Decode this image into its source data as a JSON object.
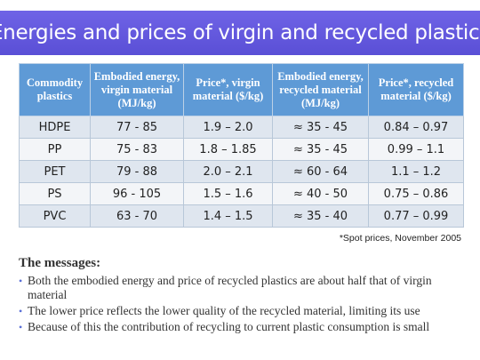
{
  "title": "Energies and prices of virgin and recycled plastics",
  "table": {
    "headers": [
      "Commodity plastics",
      "Embodied energy, virgin material (MJ/kg)",
      "Price*, virgin material ($/kg)",
      "Embodied energy, recycled material (MJ/kg)",
      "Price*, recycled material ($/kg)"
    ],
    "rows": [
      [
        "HDPE",
        "77 - 85",
        "1.9 – 2.0",
        "≈ 35 - 45",
        "0.84 – 0.97"
      ],
      [
        "PP",
        "75 - 83",
        "1.8 – 1.85",
        "≈ 35 - 45",
        "0.99 – 1.1"
      ],
      [
        "PET",
        "79 - 88",
        "2.0 – 2.1",
        "≈ 60 - 64",
        "1.1 – 1.2"
      ],
      [
        "PS",
        "96 - 105",
        "1.5 – 1.6",
        "≈ 40 - 50",
        "0.75 – 0.86"
      ],
      [
        "PVC",
        "63 - 70",
        "1.4 – 1.5",
        "≈ 35 - 40",
        "0.77 – 0.99"
      ]
    ]
  },
  "footnote": "*Spot prices, November 2005",
  "messages": {
    "heading": "The messages:",
    "bullets": [
      "Both the embodied energy and price of recycled plastics are about half that of virgin material",
      "The lower price reflects the lower quality of the recycled material, limiting its use",
      "Because of this the contribution of recycling to current plastic consumption is small"
    ]
  },
  "colors": {
    "title_bar": "#5a4fd6",
    "table_header": "#5e9ad6",
    "row_odd": "#dfe6ef",
    "row_even": "#f3f5f8",
    "bullet": "#5a6fd6"
  }
}
